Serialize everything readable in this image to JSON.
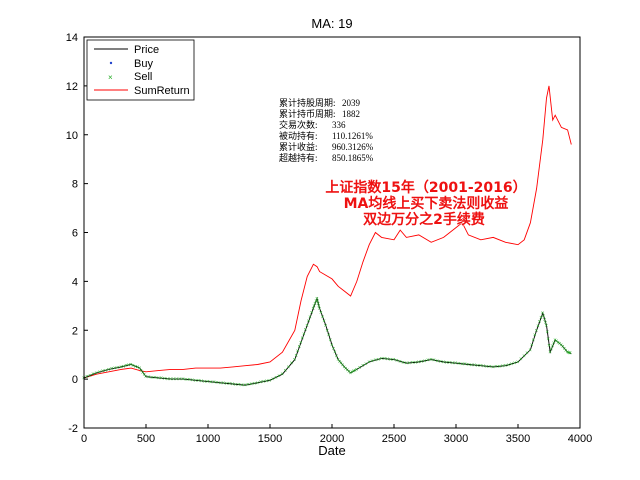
{
  "chart_data": {
    "type": "line",
    "title": "MA: 19",
    "xlabel": "Date",
    "ylabel": "",
    "xlim": [
      0,
      4000
    ],
    "ylim": [
      -2,
      14
    ],
    "x_ticks": [
      0,
      500,
      1000,
      1500,
      2000,
      2500,
      3000,
      3500,
      4000
    ],
    "y_ticks": [
      -2,
      0,
      2,
      4,
      6,
      8,
      10,
      12,
      14
    ],
    "grid": false,
    "legend_position": "top-left",
    "legend": [
      "Price",
      "Buy",
      "Sell",
      "SumReturn"
    ],
    "series": [
      {
        "name": "Price",
        "color": "#000000",
        "x": [
          0,
          100,
          200,
          300,
          380,
          450,
          500,
          600,
          700,
          800,
          900,
          1000,
          1100,
          1200,
          1300,
          1400,
          1500,
          1600,
          1700,
          1750,
          1800,
          1850,
          1880,
          1900,
          1950,
          2000,
          2050,
          2100,
          2150,
          2200,
          2300,
          2400,
          2500,
          2600,
          2700,
          2800,
          2900,
          3000,
          3100,
          3200,
          3300,
          3400,
          3500,
          3600,
          3650,
          3700,
          3730,
          3760,
          3800,
          3850,
          3900,
          3930
        ],
        "y": [
          0.05,
          0.25,
          0.4,
          0.5,
          0.6,
          0.45,
          0.1,
          0.05,
          0.0,
          0.0,
          -0.05,
          -0.1,
          -0.15,
          -0.2,
          -0.25,
          -0.15,
          -0.05,
          0.2,
          0.8,
          1.5,
          2.2,
          2.9,
          3.3,
          2.9,
          2.2,
          1.4,
          0.8,
          0.5,
          0.25,
          0.4,
          0.7,
          0.85,
          0.8,
          0.65,
          0.7,
          0.8,
          0.7,
          0.65,
          0.6,
          0.55,
          0.5,
          0.55,
          0.7,
          1.2,
          2.0,
          2.7,
          2.2,
          1.1,
          1.6,
          1.4,
          1.1,
          1.05
        ]
      },
      {
        "name": "SumReturn",
        "color": "#ff0000",
        "x": [
          0,
          100,
          200,
          300,
          380,
          450,
          500,
          600,
          700,
          800,
          900,
          1000,
          1100,
          1200,
          1300,
          1400,
          1500,
          1600,
          1700,
          1750,
          1800,
          1850,
          1880,
          1900,
          2000,
          2050,
          2100,
          2150,
          2200,
          2250,
          2300,
          2350,
          2400,
          2500,
          2550,
          2600,
          2700,
          2800,
          2900,
          3000,
          3050,
          3100,
          3200,
          3300,
          3400,
          3500,
          3550,
          3600,
          3650,
          3700,
          3730,
          3750,
          3780,
          3800,
          3850,
          3900,
          3930
        ],
        "y": [
          0.05,
          0.2,
          0.3,
          0.4,
          0.45,
          0.35,
          0.3,
          0.35,
          0.4,
          0.4,
          0.45,
          0.45,
          0.45,
          0.5,
          0.55,
          0.6,
          0.7,
          1.1,
          2.0,
          3.2,
          4.2,
          4.7,
          4.6,
          4.4,
          4.1,
          3.8,
          3.6,
          3.4,
          4.0,
          4.8,
          5.5,
          6.0,
          5.8,
          5.7,
          6.1,
          5.8,
          5.9,
          5.6,
          5.8,
          6.2,
          6.4,
          5.9,
          5.7,
          5.8,
          5.6,
          5.5,
          5.7,
          6.4,
          7.8,
          9.8,
          11.5,
          12.0,
          10.6,
          10.8,
          10.3,
          10.2,
          9.6
        ]
      }
    ],
    "annotation_stats": [
      {
        "label": "累计持股周期:",
        "value": "2039"
      },
      {
        "label": "累计持币周期:",
        "value": "1882"
      },
      {
        "label": "交易次数:",
        "value": "336"
      },
      {
        "label": "被动持有:",
        "value": "110.1261%"
      },
      {
        "label": "累计收益:",
        "value": "960.3126%"
      },
      {
        "label": "超越持有:",
        "value": "850.1865%"
      }
    ],
    "red_annotation": [
      "上证指数15年（2001-2016）",
      "MA均线上买下卖法则收益",
      "双边万分之2手续费"
    ]
  }
}
